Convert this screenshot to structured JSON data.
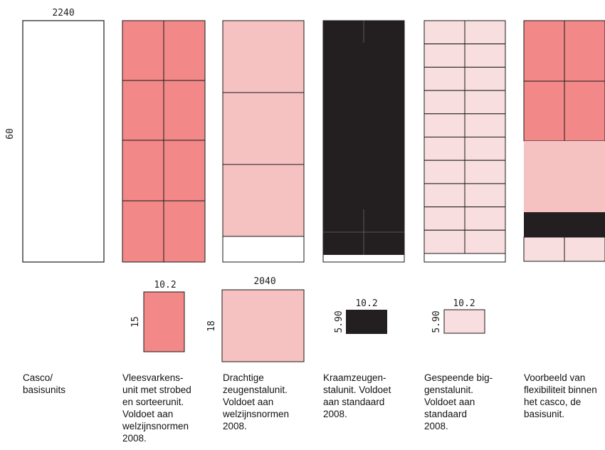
{
  "colors": {
    "outline": "#1a1a1a",
    "pink_dark": "#f38888",
    "pink_mid": "#f6c1c1",
    "pink_light": "#f8dede",
    "black": "#231f20"
  },
  "dimensions": {
    "casco_width": "2240",
    "casco_height": "60",
    "vleesvarkens_width": "10.2",
    "vleesvarkens_height": "15",
    "drachtige_width": "2040",
    "drachtige_height": "18",
    "kraamzeugen_width": "10.2",
    "kraamzeugen_height": "5.90",
    "gespeende_width": "10.2",
    "gespeende_height": "5.90"
  },
  "captions": [
    [
      "Casco/",
      "basisunits"
    ],
    [
      "Vleesvarkens-",
      "unit met strobed",
      "en sorteerunit.",
      "Voldoet aan",
      "welzijnsnormen",
      "2008."
    ],
    [
      "Drachtige",
      "zeugenstalunit.",
      "Voldoet aan",
      "welzijnsnormen",
      "2008."
    ],
    [
      "Kraamzeugen-",
      "stalunit.  Voldoet",
      "aan standaard",
      "2008."
    ],
    [
      "Gespeende big-",
      "genstalunit.",
      "Voldoet aan",
      "standaard",
      "2008."
    ],
    [
      "Voorbeeld van",
      "flexibiliteit binnen",
      "het casco, de",
      "basisunit."
    ]
  ]
}
